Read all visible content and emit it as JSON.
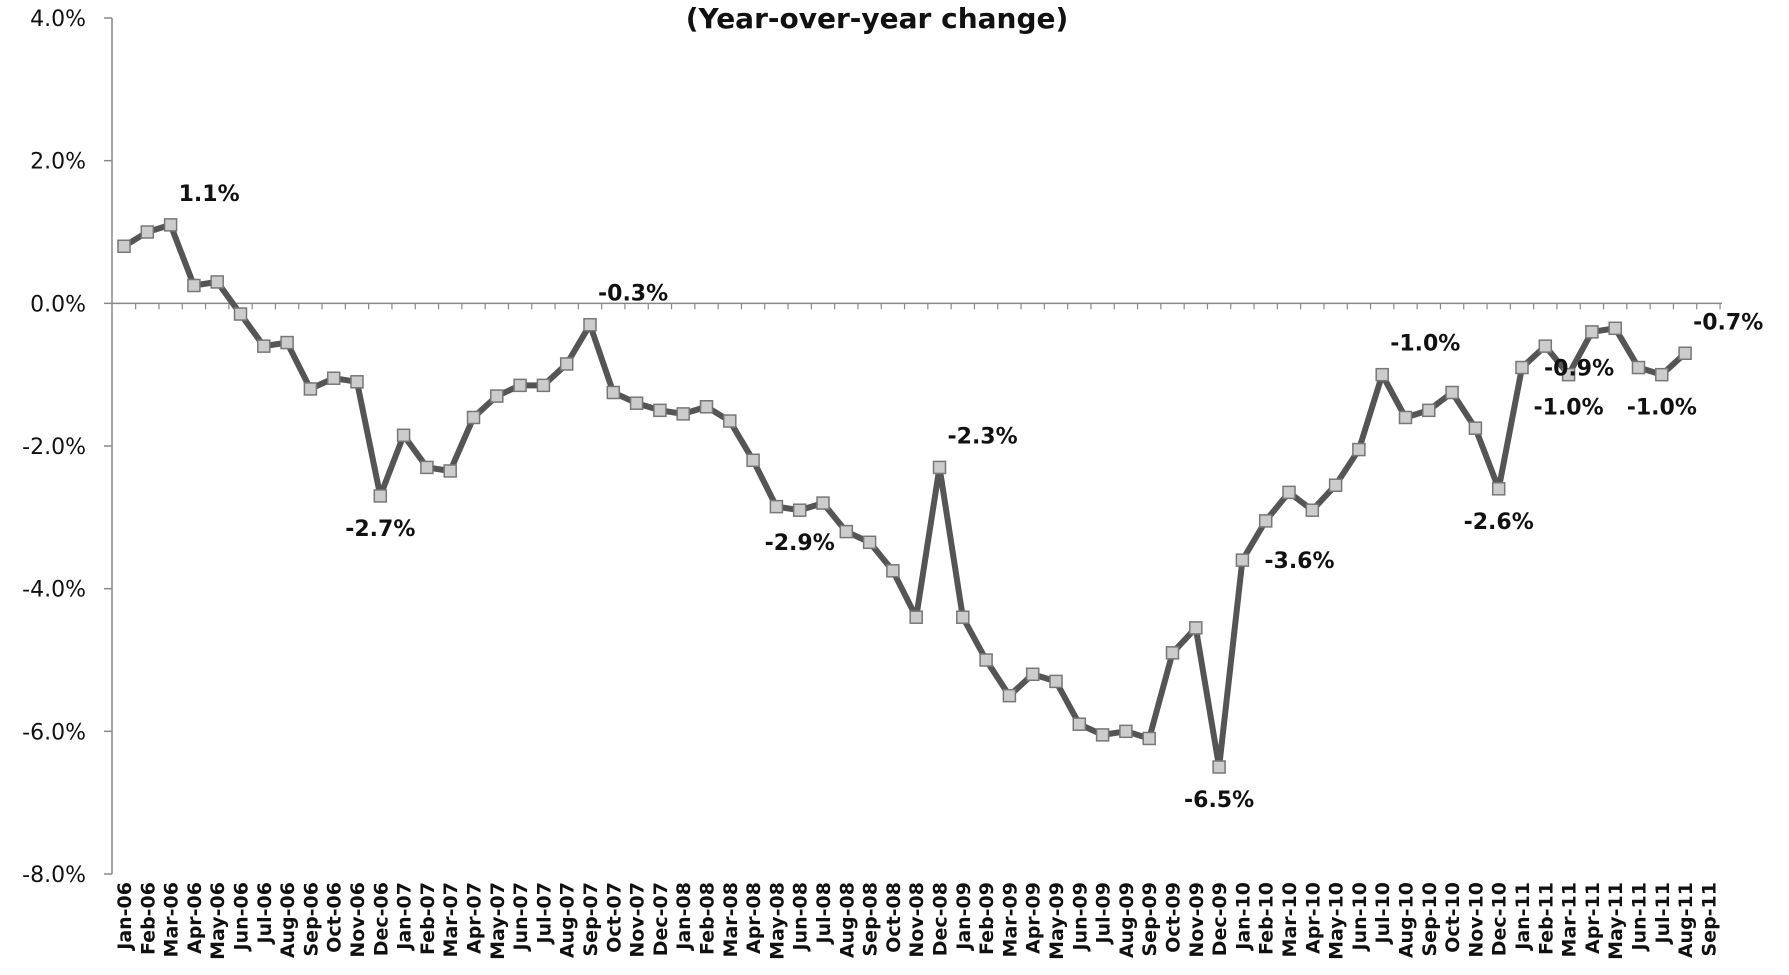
{
  "chart_data": {
    "type": "line",
    "title": "(Year-over-year change)",
    "categories": [
      "Jan-06",
      "Feb-06",
      "Mar-06",
      "Apr-06",
      "May-06",
      "Jun-06",
      "Jul-06",
      "Aug-06",
      "Sep-06",
      "Oct-06",
      "Nov-06",
      "Dec-06",
      "Jan-07",
      "Feb-07",
      "Mar-07",
      "Apr-07",
      "May-07",
      "Jun-07",
      "Jul-07",
      "Aug-07",
      "Sep-07",
      "Oct-07",
      "Nov-07",
      "Dec-07",
      "Jan-08",
      "Feb-08",
      "Mar-08",
      "Apr-08",
      "May-08",
      "Jun-08",
      "Jul-08",
      "Aug-08",
      "Sep-08",
      "Oct-08",
      "Nov-08",
      "Dec-08",
      "Jan-09",
      "Feb-09",
      "Mar-09",
      "Apr-09",
      "May-09",
      "Jun-09",
      "Jul-09",
      "Aug-09",
      "Sep-09",
      "Oct-09",
      "Nov-09",
      "Dec-09",
      "Jan-10",
      "Feb-10",
      "Mar-10",
      "Apr-10",
      "May-10",
      "Jun-10",
      "Jul-10",
      "Aug-10",
      "Sep-10",
      "Oct-10",
      "Nov-10",
      "Dec-10",
      "Jan-11",
      "Feb-11",
      "Mar-11",
      "Apr-11",
      "May-11",
      "Jun-11",
      "Jul-11",
      "Aug-11",
      "Sep-11"
    ],
    "series": [
      {
        "color": "#555555",
        "values": [
          0.8,
          1.0,
          1.1,
          0.25,
          0.3,
          -0.15,
          -0.6,
          -0.55,
          -1.2,
          -1.05,
          -1.1,
          -2.7,
          -1.85,
          -2.3,
          -2.35,
          -1.6,
          -1.3,
          -1.15,
          -1.15,
          -0.85,
          -0.3,
          -1.25,
          -1.4,
          -1.5,
          -1.55,
          -1.45,
          -1.65,
          -2.2,
          -2.85,
          -2.9,
          -2.8,
          -3.2,
          -3.35,
          -3.75,
          -4.4,
          -2.3,
          -4.4,
          -5.0,
          -5.5,
          -5.2,
          -5.3,
          -5.9,
          -6.05,
          -6.0,
          -6.1,
          -4.9,
          -4.55,
          -6.5,
          -3.6,
          -3.05,
          -2.65,
          -2.9,
          -2.55,
          -2.05,
          -1.0,
          -1.6,
          -1.5,
          -1.25,
          -1.75,
          -2.6,
          -0.9,
          -0.6,
          -1.0,
          -0.4,
          -0.35,
          -0.9,
          -1.0,
          -0.7,
          null
        ],
        "value_labels": [
          null,
          null,
          "1.1%",
          null,
          null,
          null,
          null,
          null,
          null,
          null,
          null,
          "-2.7%",
          null,
          null,
          null,
          null,
          null,
          null,
          null,
          null,
          "-0.3%",
          null,
          null,
          null,
          null,
          null,
          null,
          null,
          null,
          "-2.9%",
          null,
          null,
          null,
          null,
          null,
          "-2.3%",
          null,
          null,
          null,
          null,
          null,
          null,
          null,
          null,
          null,
          null,
          null,
          "-6.5%",
          "-3.6%",
          null,
          null,
          null,
          null,
          null,
          "-1.0%",
          null,
          null,
          null,
          null,
          "-2.6%",
          "-0.9%",
          null,
          "-1.0%",
          null,
          null,
          null,
          "-1.0%",
          "-0.7%",
          null
        ],
        "marker_color": "#cccccc"
      }
    ],
    "ylim": [
      -8,
      4
    ],
    "yticks": [
      {
        "value": 4,
        "label": "4.0%"
      },
      {
        "value": 2,
        "label": "2.0%"
      },
      {
        "value": 0,
        "label": "0.0%"
      },
      {
        "value": -2,
        "label": "-2.0%"
      },
      {
        "value": -4,
        "label": "-4.0%"
      },
      {
        "value": -6,
        "label": "-6.0%"
      },
      {
        "value": -8,
        "label": "-8.0%"
      }
    ],
    "grid": false
  }
}
